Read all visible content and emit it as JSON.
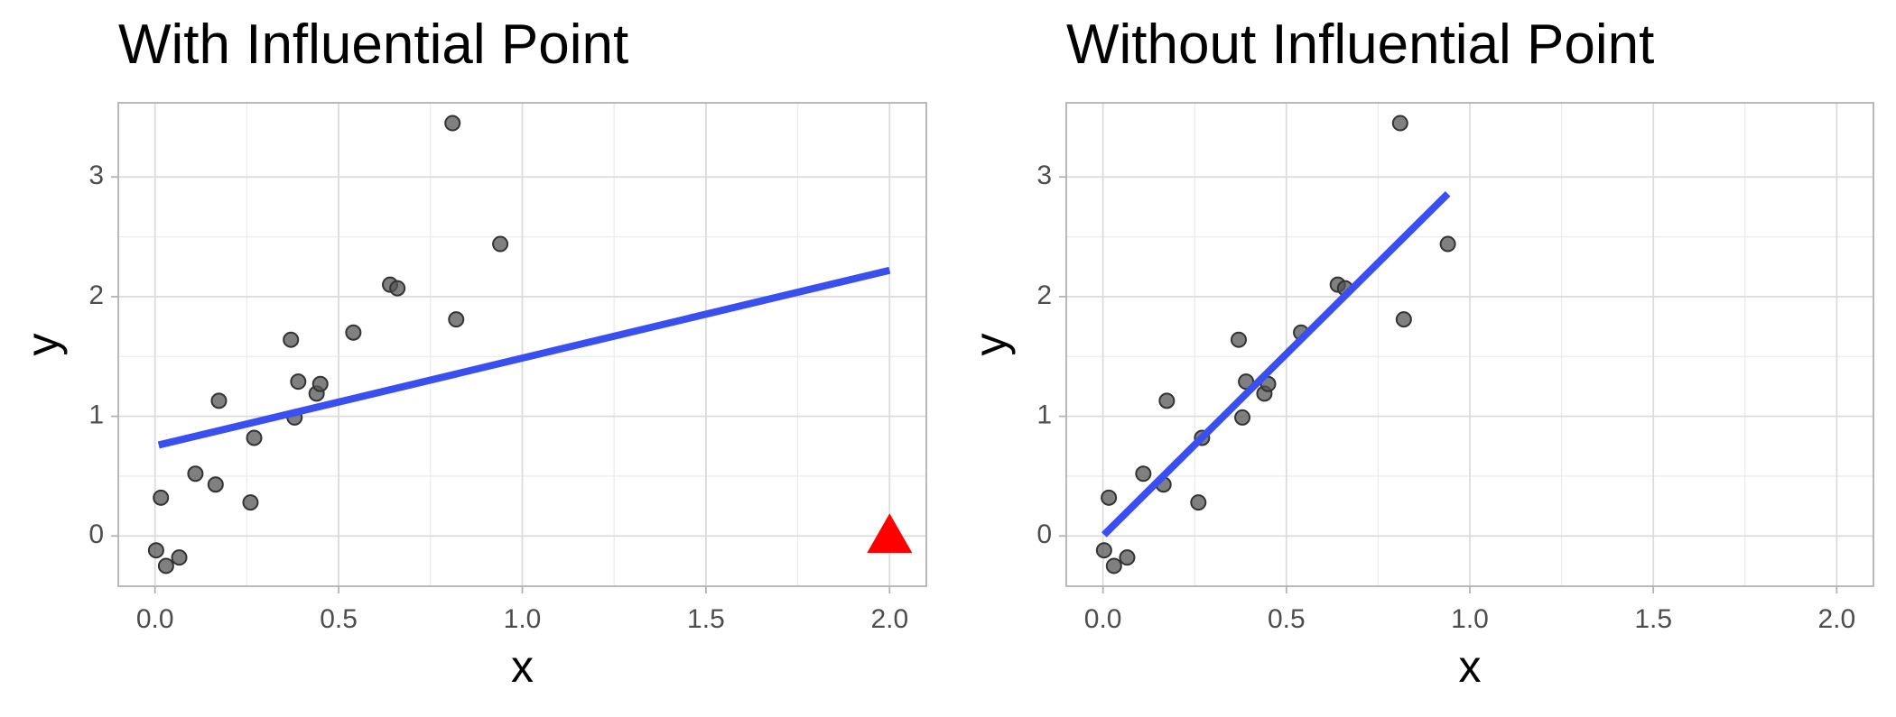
{
  "chart_data": [
    {
      "type": "scatter",
      "title": "With Influential Point",
      "x_label": "x",
      "y_label": "y",
      "x": [
        0.003,
        0.016,
        0.03,
        0.066,
        0.11,
        0.165,
        0.174,
        0.27,
        0.26,
        0.37,
        0.38,
        0.39,
        0.44,
        0.45,
        0.54,
        0.64,
        0.66,
        0.81,
        0.82,
        0.94
      ],
      "y": [
        -0.12,
        0.32,
        -0.25,
        -0.18,
        0.52,
        0.43,
        1.13,
        0.82,
        0.28,
        1.64,
        0.99,
        1.29,
        1.19,
        1.27,
        1.7,
        2.1,
        2.07,
        3.45,
        1.81,
        2.44
      ],
      "color": "#555555",
      "highlight": {
        "x": 2.0,
        "y": 0.0,
        "color": "#ff0000",
        "shape": "triangle"
      },
      "fit_line": {
        "x": [
          0.01,
          2.0
        ],
        "y": [
          0.76,
          2.22
        ],
        "color": "#3a4ff0"
      },
      "xlim": [
        -0.1,
        2.1
      ],
      "ylim": [
        -0.42,
        3.62
      ],
      "xticks": [
        {
          "value": 0,
          "label": "0.0"
        },
        0.5,
        {
          "value": 1,
          "label": "1.0"
        },
        1.5,
        {
          "value": 2,
          "label": "2.0"
        }
      ],
      "yticks": [
        0,
        1,
        2,
        3
      ],
      "grid": true
    },
    {
      "type": "scatter",
      "title": "Without Influential Point",
      "x_label": "x",
      "y_label": "y",
      "x": [
        0.003,
        0.016,
        0.03,
        0.066,
        0.11,
        0.165,
        0.174,
        0.27,
        0.26,
        0.37,
        0.38,
        0.39,
        0.44,
        0.45,
        0.54,
        0.64,
        0.66,
        0.81,
        0.82,
        0.94
      ],
      "y": [
        -0.12,
        0.32,
        -0.25,
        -0.18,
        0.52,
        0.43,
        1.13,
        0.82,
        0.28,
        1.64,
        0.99,
        1.29,
        1.19,
        1.27,
        1.7,
        2.1,
        2.07,
        3.45,
        1.81,
        2.44
      ],
      "color": "#555555",
      "fit_line": {
        "x": [
          0.003,
          0.94
        ],
        "y": [
          0.01,
          2.86
        ],
        "color": "#3a4ff0"
      },
      "xlim": [
        -0.1,
        2.1
      ],
      "ylim": [
        -0.42,
        3.62
      ],
      "xticks": [
        {
          "value": 0,
          "label": "0.0"
        },
        0.5,
        {
          "value": 1,
          "label": "1.0"
        },
        1.5,
        {
          "value": 2,
          "label": "2.0"
        }
      ],
      "yticks": [
        0,
        1,
        2,
        3
      ],
      "grid": true
    }
  ]
}
